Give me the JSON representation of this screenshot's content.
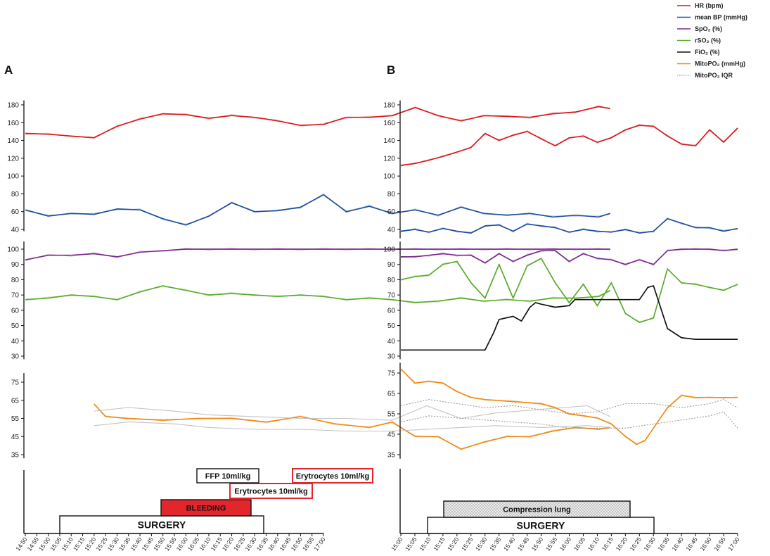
{
  "panels": [
    "A",
    "B"
  ],
  "legend": [
    {
      "label": "HR (bpm)",
      "color": "#d7191c",
      "style": "solid"
    },
    {
      "label": "mean BP (mmHg)",
      "color": "#1f4e9c",
      "style": "solid"
    },
    {
      "label": "SpO₂ (%)",
      "color": "#7b2a8c",
      "style": "solid"
    },
    {
      "label": "rSO₂ (%)",
      "color": "#5aab2b",
      "style": "solid"
    },
    {
      "label": "FiO₂ (%)",
      "color": "#111111",
      "style": "solid"
    },
    {
      "label": "MitoPO₂ (mmHg)",
      "color": "#ef8a17",
      "style": "solid"
    },
    {
      "label": "MitoPO₂ IQR",
      "color": "#9a9a9a",
      "style": "dotted"
    }
  ],
  "axes": {
    "hr_bp_ticks": [
      40,
      60,
      80,
      100,
      120,
      140,
      160,
      180
    ],
    "sat_ticks": [
      30,
      40,
      50,
      60,
      70,
      80,
      90,
      100
    ],
    "mito_ticks": [
      35,
      45,
      55,
      65,
      75
    ]
  },
  "chart_data": [
    {
      "panel": "A",
      "type": "line",
      "time_labels": [
        "14:50",
        "14:55",
        "15:00",
        "15:05",
        "15:10",
        "15:15",
        "15:20",
        "15:25",
        "15:30",
        "15:35",
        "15:40",
        "15:45",
        "15:50",
        "15:55",
        "16:00",
        "16:05",
        "16:10",
        "16:15",
        "16:20",
        "16:25",
        "16:30",
        "16:35",
        "16:40",
        "16:45",
        "16:50",
        "16:55",
        "17:00"
      ],
      "time_start": "14:50",
      "time_end": "17:00",
      "series": [
        {
          "name": "HR (bpm)",
          "subplot": "hr_bp",
          "color": "#d7191c",
          "t": [
            0,
            10,
            20,
            30,
            40,
            50,
            60,
            70,
            80,
            90,
            100,
            110,
            120,
            130,
            140,
            150,
            160,
            170,
            180,
            190,
            200,
            210,
            220,
            230,
            240,
            250,
            255
          ],
          "values": [
            148,
            147,
            145,
            143,
            156,
            164,
            170,
            169,
            165,
            168,
            166,
            162,
            157,
            158,
            166,
            166,
            168,
            177,
            168,
            162,
            168,
            167,
            166,
            170,
            172,
            178,
            176
          ]
        },
        {
          "name": "mean BP (mmHg)",
          "subplot": "hr_bp",
          "color": "#1f4e9c",
          "t": [
            0,
            10,
            20,
            30,
            40,
            50,
            60,
            70,
            80,
            90,
            100,
            110,
            120,
            130,
            140,
            150,
            160,
            170,
            180,
            190,
            200,
            210,
            220,
            230,
            240,
            250,
            255
          ],
          "values": [
            62,
            55,
            58,
            57,
            63,
            62,
            52,
            45,
            55,
            70,
            60,
            61,
            65,
            79,
            60,
            66,
            58,
            62,
            56,
            65,
            58,
            56,
            58,
            54,
            56,
            54,
            58
          ]
        },
        {
          "name": "SpO₂ (%)",
          "subplot": "sat",
          "color": "#7b2a8c",
          "t": [
            0,
            10,
            20,
            30,
            40,
            50,
            60,
            70,
            80,
            90,
            100,
            110,
            120,
            130,
            140,
            150,
            160,
            170,
            180,
            190,
            200,
            210,
            220,
            230,
            240,
            250,
            255
          ],
          "values": [
            93,
            96,
            96,
            97,
            95,
            98,
            99,
            100,
            100,
            100,
            100,
            100,
            100,
            100,
            100,
            100,
            100,
            100,
            100,
            100,
            100,
            100,
            100,
            100,
            100,
            100,
            100
          ]
        },
        {
          "name": "rSO₂ (%)",
          "subplot": "sat",
          "color": "#5aab2b",
          "t": [
            0,
            10,
            20,
            30,
            40,
            50,
            60,
            70,
            80,
            90,
            100,
            110,
            120,
            130,
            140,
            150,
            160,
            170,
            180,
            190,
            200,
            210,
            220,
            230,
            240,
            250,
            255
          ],
          "values": [
            67,
            68,
            70,
            69,
            67,
            72,
            76,
            73,
            70,
            71,
            70,
            69,
            70,
            69,
            67,
            68,
            67,
            65,
            66,
            68,
            66,
            67,
            66,
            68,
            68,
            69,
            73
          ]
        },
        {
          "name": "MitoPO₂ (mmHg)",
          "subplot": "mito",
          "color": "#ef8a17",
          "t": [
            30,
            35,
            45,
            60,
            75,
            90,
            105,
            120,
            135,
            150,
            160,
            170,
            180,
            190,
            200,
            210,
            220,
            230,
            240,
            250,
            255
          ],
          "values": [
            63,
            56,
            55,
            54,
            55,
            55,
            53,
            56,
            52,
            50,
            53,
            45,
            45,
            38,
            42,
            45,
            45,
            48,
            50,
            49,
            50
          ]
        },
        {
          "name": "MitoPO₂ IQR",
          "subplot": "mito",
          "color": "#bdbdbd",
          "t": [
            30,
            45,
            65,
            80,
            100,
            120,
            140,
            160,
            175,
            190,
            205,
            225,
            245,
            255
          ],
          "values": [
            51,
            53,
            52,
            50,
            49,
            49,
            48,
            48,
            49,
            50,
            51,
            50,
            51,
            50
          ]
        },
        {
          "name": "MitoPO₂ IQR",
          "subplot": "mito",
          "color": "#bdbdbd",
          "t": [
            30,
            45,
            65,
            80,
            100,
            120,
            140,
            160,
            175,
            190,
            205,
            225,
            245,
            255
          ],
          "values": [
            59,
            61,
            59,
            57,
            56,
            55,
            55,
            54,
            62,
            55,
            58,
            60,
            62,
            56
          ]
        }
      ],
      "events": [
        {
          "label": "SURGERY",
          "t0": 20,
          "t1": 200,
          "fill": "#ffffff",
          "border": "#111111",
          "row": 0
        },
        {
          "label": "BLEEDING",
          "t0": 115,
          "t1": 190,
          "fill": "#e1262c",
          "border": "#111111",
          "row": 1
        },
        {
          "label": "Erytrocytes 10ml/kg",
          "t0": 175,
          "t1": 245,
          "fill": "#ffffff",
          "border": "#e1262c",
          "row": 2
        },
        {
          "label": "FFP 10ml/kg",
          "t0": 145,
          "t1": 190,
          "fill": "#ffffff",
          "border": "#111111",
          "row": 3
        },
        {
          "label": "Erytrocytes 10ml/kg",
          "t0": 225,
          "t1": 290,
          "fill": "#ffffff",
          "border": "#e1262c",
          "row": 3
        }
      ]
    },
    {
      "panel": "B",
      "type": "line",
      "time_labels": [
        "15:00",
        "15:05",
        "15:10",
        "15:15",
        "15:20",
        "15:25",
        "15:30",
        "15:35",
        "15:40",
        "15:45",
        "15:50",
        "15:55",
        "16:00",
        "16:05",
        "16:10",
        "16:15",
        "16:20",
        "16:25",
        "16:30",
        "16:35",
        "16:40",
        "16:45",
        "16:50",
        "16:55",
        "17:00"
      ],
      "time_start": "15:00",
      "time_end": "17:00",
      "series": [
        {
          "name": "HR (bpm)",
          "subplot": "hr_bp",
          "color": "#d7191c",
          "t": [
            0,
            5,
            10,
            15,
            20,
            25,
            30,
            35,
            40,
            45,
            50,
            55,
            60,
            65,
            70,
            75,
            80,
            85,
            90,
            95,
            100,
            105,
            110,
            115,
            120
          ],
          "values": [
            112,
            114,
            118,
            122,
            127,
            132,
            148,
            140,
            146,
            150,
            142,
            134,
            143,
            145,
            138,
            143,
            152,
            157,
            156,
            145,
            136,
            134,
            152,
            138,
            154
          ]
        },
        {
          "name": "mean BP (mmHg)",
          "subplot": "hr_bp",
          "color": "#1f4e9c",
          "t": [
            0,
            5,
            10,
            15,
            20,
            25,
            30,
            35,
            40,
            45,
            50,
            55,
            60,
            65,
            70,
            75,
            80,
            85,
            90,
            95,
            100,
            105,
            110,
            115,
            120
          ],
          "values": [
            38,
            40,
            37,
            41,
            38,
            36,
            44,
            45,
            38,
            46,
            44,
            42,
            37,
            40,
            38,
            37,
            40,
            36,
            38,
            52,
            47,
            42,
            42,
            38,
            41
          ]
        },
        {
          "name": "SpO₂ (%)",
          "subplot": "sat",
          "color": "#7b2a8c",
          "t": [
            0,
            5,
            10,
            15,
            20,
            25,
            30,
            35,
            40,
            45,
            50,
            55,
            60,
            65,
            70,
            75,
            80,
            85,
            90,
            95,
            100,
            105,
            110,
            115,
            120
          ],
          "values": [
            95,
            95,
            96,
            97,
            96,
            96,
            91,
            97,
            92,
            96,
            99,
            99,
            92,
            97,
            94,
            93,
            90,
            93,
            90,
            99,
            100,
            100,
            100,
            99,
            100
          ]
        },
        {
          "name": "rSO₂ (%)",
          "subplot": "sat",
          "color": "#5aab2b",
          "t": [
            0,
            5,
            10,
            15,
            20,
            25,
            30,
            35,
            40,
            45,
            50,
            55,
            60,
            65,
            70,
            75,
            80,
            85,
            90,
            95,
            100,
            105,
            110,
            115,
            120
          ],
          "values": [
            80,
            82,
            83,
            90,
            92,
            78,
            68,
            90,
            68,
            89,
            94,
            78,
            65,
            77,
            63,
            78,
            58,
            52,
            55,
            87,
            78,
            77,
            75,
            73,
            77
          ]
        },
        {
          "name": "FiO₂ (%)",
          "subplot": "sat",
          "color": "#111111",
          "t": [
            0,
            20,
            30,
            33,
            35,
            40,
            43,
            46,
            48,
            50,
            55,
            60,
            62,
            70,
            80,
            85,
            88,
            90,
            95,
            100,
            105,
            110,
            115,
            120
          ],
          "values": [
            34,
            34,
            34,
            45,
            54,
            56,
            53,
            62,
            65,
            64,
            62,
            63,
            67,
            67,
            67,
            67,
            75,
            76,
            48,
            42,
            41,
            41,
            41,
            41
          ]
        },
        {
          "name": "MitoPO₂ (mmHg)",
          "subplot": "mito",
          "color": "#ef8a17",
          "t": [
            0,
            5,
            10,
            15,
            20,
            25,
            30,
            40,
            50,
            55,
            60,
            65,
            70,
            75,
            80,
            84,
            87,
            90,
            95,
            100,
            105,
            110,
            115,
            120
          ],
          "values": [
            77,
            70,
            71,
            70,
            66,
            63,
            62,
            61,
            60,
            58,
            55,
            54,
            53,
            50,
            44,
            40,
            42,
            48,
            58,
            64,
            63,
            63,
            63,
            63
          ]
        },
        {
          "name": "MitoPO₂ IQR",
          "subplot": "mito",
          "color": "#9a9a9a",
          "t": [
            0,
            10,
            20,
            30,
            40,
            50,
            60,
            70,
            80,
            90,
            100,
            110,
            115,
            120
          ],
          "values": [
            51,
            54,
            53,
            52,
            51,
            50,
            48,
            48,
            48,
            50,
            52,
            54,
            56,
            48
          ]
        },
        {
          "name": "MitoPO₂ IQR",
          "subplot": "mito",
          "color": "#9a9a9a",
          "t": [
            0,
            10,
            20,
            30,
            40,
            50,
            60,
            70,
            80,
            90,
            100,
            110,
            115,
            120
          ],
          "values": [
            59,
            62,
            60,
            58,
            59,
            57,
            55,
            56,
            60,
            60,
            58,
            60,
            62,
            58
          ]
        }
      ],
      "events": [
        {
          "label": "SURGERY",
          "t0": 10,
          "t1": 90,
          "fill": "#ffffff",
          "border": "#111111",
          "row": 0,
          "pattern": false
        },
        {
          "label": "Compression lung",
          "t0": 15,
          "t1": 83,
          "fill": "#e4e4e4",
          "border": "#111111",
          "row": 1,
          "pattern": true
        }
      ]
    }
  ]
}
